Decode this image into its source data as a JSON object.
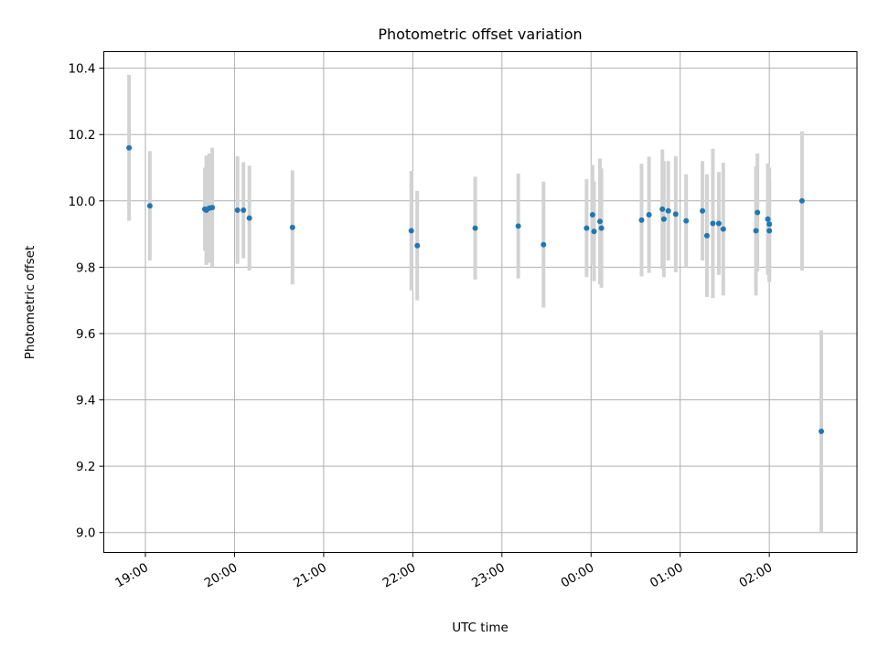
{
  "chart_data": {
    "type": "scatter",
    "title": "Photometric offset variation",
    "xlabel": "UTC time",
    "ylabel": "Photometric offset",
    "xlim": [
      "18:32",
      "02:59"
    ],
    "ylim": [
      8.94,
      10.45
    ],
    "x_ticks": [
      "19:00",
      "20:00",
      "21:00",
      "22:00",
      "23:00",
      "00:00",
      "01:00",
      "02:00"
    ],
    "y_ticks": [
      "9.0",
      "9.2",
      "9.4",
      "9.6",
      "9.8",
      "10.0",
      "10.2",
      "10.4"
    ],
    "grid": true,
    "point_color": "#1f77b4",
    "errorbar_color": "#d3d3d3",
    "points": [
      {
        "t": "18:49",
        "y": 10.16,
        "err": 0.22
      },
      {
        "t": "19:03",
        "y": 9.985,
        "err": 0.165
      },
      {
        "t": "19:40",
        "y": 9.975,
        "err": 0.125
      },
      {
        "t": "19:41",
        "y": 9.972,
        "err": 0.165
      },
      {
        "t": "19:43",
        "y": 9.978,
        "err": 0.165
      },
      {
        "t": "19:45",
        "y": 9.98,
        "err": 0.18
      },
      {
        "t": "20:02",
        "y": 9.972,
        "err": 0.162
      },
      {
        "t": "20:06",
        "y": 9.972,
        "err": 0.145
      },
      {
        "t": "20:10",
        "y": 9.948,
        "err": 0.158
      },
      {
        "t": "20:39",
        "y": 9.92,
        "err": 0.172
      },
      {
        "t": "21:59",
        "y": 9.91,
        "err": 0.18
      },
      {
        "t": "22:03",
        "y": 9.865,
        "err": 0.165
      },
      {
        "t": "22:42",
        "y": 9.918,
        "err": 0.155
      },
      {
        "t": "23:11",
        "y": 9.924,
        "err": 0.158
      },
      {
        "t": "23:28",
        "y": 9.868,
        "err": 0.19
      },
      {
        "t": "23:57",
        "y": 9.918,
        "err": 0.148
      },
      {
        "t": "00:01",
        "y": 9.958,
        "err": 0.15
      },
      {
        "t": "00:02",
        "y": 9.908,
        "err": 0.15
      },
      {
        "t": "00:06",
        "y": 9.938,
        "err": 0.19
      },
      {
        "t": "00:07",
        "y": 9.918,
        "err": 0.18
      },
      {
        "t": "00:34",
        "y": 9.942,
        "err": 0.17
      },
      {
        "t": "00:39",
        "y": 9.958,
        "err": 0.175
      },
      {
        "t": "00:48",
        "y": 9.975,
        "err": 0.18
      },
      {
        "t": "00:49",
        "y": 9.945,
        "err": 0.175
      },
      {
        "t": "00:52",
        "y": 9.97,
        "err": 0.15
      },
      {
        "t": "00:57",
        "y": 9.96,
        "err": 0.175
      },
      {
        "t": "01:04",
        "y": 9.94,
        "err": 0.14
      },
      {
        "t": "01:15",
        "y": 9.97,
        "err": 0.15
      },
      {
        "t": "01:18",
        "y": 9.895,
        "err": 0.185
      },
      {
        "t": "01:22",
        "y": 9.932,
        "err": 0.225
      },
      {
        "t": "01:26",
        "y": 9.932,
        "err": 0.155
      },
      {
        "t": "01:29",
        "y": 9.915,
        "err": 0.2
      },
      {
        "t": "01:51",
        "y": 9.91,
        "err": 0.195
      },
      {
        "t": "01:52",
        "y": 9.965,
        "err": 0.178
      },
      {
        "t": "01:59",
        "y": 9.945,
        "err": 0.168
      },
      {
        "t": "02:00",
        "y": 9.93,
        "err": 0.17
      },
      {
        "t": "02:00",
        "y": 9.91,
        "err": 0.155
      },
      {
        "t": "02:22",
        "y": 10.0,
        "err": 0.21
      },
      {
        "t": "02:35",
        "y": 9.305,
        "err": 0.305
      }
    ]
  }
}
